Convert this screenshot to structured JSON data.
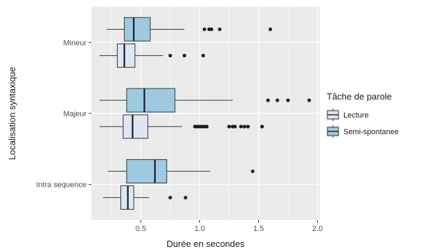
{
  "chart_data": {
    "type": "boxplot",
    "orientation": "horizontal",
    "xlabel": "Durée en secondes",
    "ylabel": "Localisation syntaxique",
    "xlim": [
      0.08,
      2.02
    ],
    "x_ticks": [
      0.5,
      1.0,
      1.5,
      2.0
    ],
    "x_tick_labels": [
      "0.5",
      "1.0",
      "1.5",
      "2.0"
    ],
    "categories": [
      "Mineur",
      "Majeur",
      "Intra sequence"
    ],
    "grid": true,
    "background": "#ebebeb",
    "legend": {
      "title": "Tâche de parole",
      "position": "right",
      "entries": [
        {
          "label": "Lecture",
          "fill": "#dfe6f3"
        },
        {
          "label": "Semi-spontanee",
          "fill": "#9ecae1"
        }
      ]
    },
    "series": [
      {
        "name": "Lecture",
        "fill": "#dfe6f3",
        "boxes": [
          {
            "category": "Mineur",
            "whisker_low": 0.15,
            "q1": 0.3,
            "median": 0.36,
            "q3": 0.45,
            "whisker_high": 0.69,
            "outliers": [
              0.75,
              0.87,
              1.03
            ]
          },
          {
            "category": "Majeur",
            "whisker_low": 0.15,
            "q1": 0.35,
            "median": 0.43,
            "q3": 0.56,
            "whisker_high": 0.85,
            "outliers": [
              0.96,
              0.98,
              1.0,
              1.02,
              1.04,
              1.06,
              1.25,
              1.28,
              1.3,
              1.35,
              1.38,
              1.41,
              1.53
            ]
          },
          {
            "category": "Intra sequence",
            "whisker_low": 0.18,
            "q1": 0.33,
            "median": 0.39,
            "q3": 0.44,
            "whisker_high": 0.57,
            "outliers": [
              0.75,
              0.88
            ]
          }
        ]
      },
      {
        "name": "Semi-spontanee",
        "fill": "#9ecae1",
        "boxes": [
          {
            "category": "Mineur",
            "whisker_low": 0.21,
            "q1": 0.36,
            "median": 0.44,
            "q3": 0.58,
            "whisker_high": 0.87,
            "outliers": [
              1.04,
              1.08,
              1.1,
              1.17,
              1.6
            ]
          },
          {
            "category": "Majeur",
            "whisker_low": 0.15,
            "q1": 0.38,
            "median": 0.53,
            "q3": 0.79,
            "whisker_high": 1.28,
            "outliers": [
              1.58,
              1.66,
              1.75,
              1.93
            ]
          },
          {
            "category": "Intra sequence",
            "whisker_low": 0.22,
            "q1": 0.38,
            "median": 0.62,
            "q3": 0.72,
            "whisker_high": 1.09,
            "outliers": [
              1.45
            ]
          }
        ]
      }
    ]
  }
}
